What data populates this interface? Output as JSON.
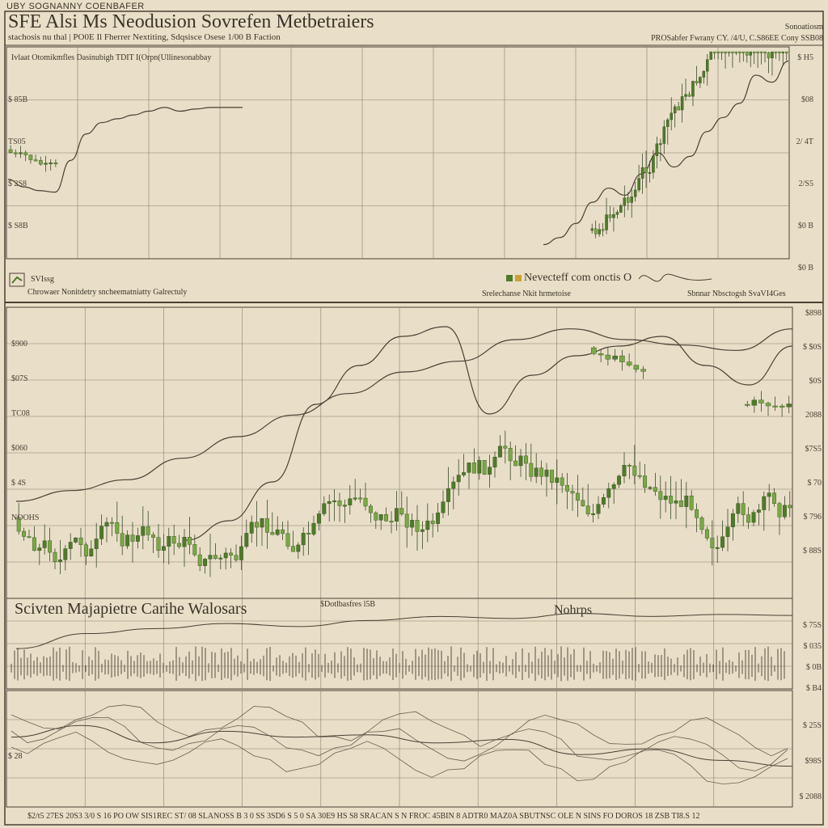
{
  "header": {
    "top_label": "UBY SOGNANNY COENBAFER",
    "title": "SFE Alsi Ms Neodusion Sovrefen Metbetraiers",
    "subtitle": "stachosis nu thal | PO0E Il Fherrer Nextiting, Sdqsisce Osese 1/00 B Faction",
    "right_note": "Sonoatiosm",
    "right_info": "PROSabfer Fwrany CY. /4/U, C.S86EE  Cony SSB08"
  },
  "panel1": {
    "caption": "Ivlaat Otomikmfles Dasinubigh TDIT I(Orpn(Ullinesonabbay",
    "legend_label": "SVIssg",
    "legend_note": "Chrowaer Nonitdetry sncheematniatty Galrectuly",
    "center_legend": "Nevecteff com onctis O",
    "center_note": "Srelechanse Nkit hrmetoise",
    "right_legend": "Sbnnar Nbsctogsh SvaVI4Ges",
    "y_ticks": [
      "$ H5",
      "$08",
      "2/ 4T",
      "2/S5",
      "$0 B",
      "$0 B"
    ],
    "left_ticks": [
      "$ 85B",
      "TS05",
      "$ 2S8",
      "$ S8B"
    ]
  },
  "panel2": {
    "y_ticks_left": [
      "$900",
      "$07S",
      "TC08",
      "$060",
      "$ 4S",
      "NOOHS"
    ],
    "y_ticks_right": [
      "$898",
      "$ $0S",
      "$0S",
      "2088",
      "$7S5",
      "$ 70",
      "$ 796",
      "$ 88S"
    ]
  },
  "panel3": {
    "title": "Scivten Majapietre Carihe Walosars",
    "mid_label": "Nohrps",
    "small_label": "$Dotlbasfres l5B",
    "right_ticks": [
      "$ 75S",
      "$ 035",
      "$ 0B",
      "$ B4"
    ]
  },
  "panel4": {
    "left_tick": "$ 28",
    "right_ticks": [
      "$ 25S",
      "$98S",
      "$ 2088"
    ],
    "bottom_axis": "$2/t5 27ES  20S3  3/0    S 16 PO  OW    SIS1REC ST/ 08   SLANOSS B 3 0 SS  3SD6 S 5 0 SA 30E9 HS S8 SRACAN S N FROC 45BIN 8   ADTR0 MAZ0A  SBUTNSC OLE  N SINS FO  DOROS 18    ZSB TI8.S  12"
  },
  "colors": {
    "background": "#e9dfc8",
    "ink": "#4a3f34",
    "grid": "#8a7d6b",
    "bull": "#4f7a2a",
    "bull_light": "#7aa845"
  },
  "chart_data": [
    {
      "type": "line",
      "title": "SFE Alsi Ms Neodusion Sovrefen Metbetraiers",
      "series": [
        {
          "name": "",
          "values": [
            205,
            195,
            190,
            188,
            230,
            265,
            280,
            285,
            290,
            295,
            300,
            295,
            298,
            300,
            300,
            300
          ]
        },
        {
          "name": "",
          "values": [
            100,
            110,
            130,
            160,
            180,
            170,
            200,
            230,
            210,
            225,
            260,
            280,
            300,
            340,
            330,
            360
          ]
        }
      ]
    },
    {
      "type": "line",
      "series": [
        {
          "name": "",
          "values": [
            150,
            160,
            170,
            190,
            210,
            230,
            250,
            270,
            280,
            300,
            310,
            300,
            295,
            290,
            310
          ]
        },
        {
          "name": "",
          "values": [
            120,
            140,
            180,
            260,
            300,
            330,
            340,
            250,
            290,
            310,
            320,
            330,
            300,
            280,
            320
          ]
        }
      ]
    },
    {
      "type": "line",
      "series": [
        {
          "name": "",
          "values": [
            40,
            55,
            60,
            65,
            62,
            68,
            72,
            70,
            75,
            72,
            74,
            73
          ]
        }
      ]
    },
    {
      "type": "line",
      "series": [
        {
          "name": "",
          "values": [
            60,
            70,
            55,
            65,
            60,
            62,
            55,
            58,
            45,
            50,
            40,
            35
          ]
        }
      ]
    }
  ]
}
